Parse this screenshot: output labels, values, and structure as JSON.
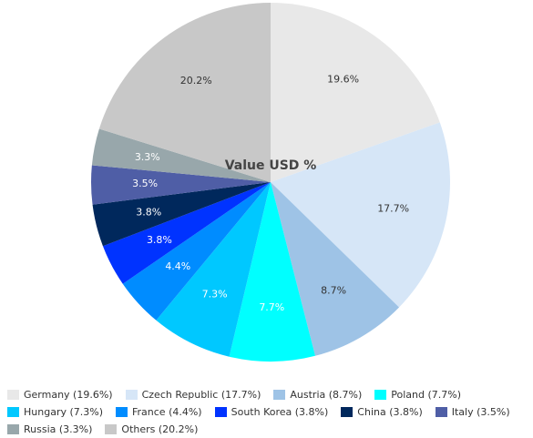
{
  "chart_data": {
    "type": "pie",
    "title": "Value USD %",
    "labels": [
      "Germany",
      "Czech Republic",
      "Austria",
      "Poland",
      "Hungary",
      "France",
      "South Korea",
      "China",
      "Italy",
      "Russia",
      "Others"
    ],
    "values": [
      19.6,
      17.7,
      8.7,
      7.7,
      7.3,
      4.4,
      3.8,
      3.8,
      3.5,
      3.3,
      20.2
    ],
    "slice_labels": [
      "19.6%",
      "17.7%",
      "8.7%",
      "7.7%",
      "7.3%",
      "4.4%",
      "3.8%",
      "3.8%",
      "3.5%",
      "3.3%",
      "20.2%"
    ],
    "legend_labels": [
      "Germany (19.6%)",
      "Czech Republic (17.7%)",
      "Austria (8.7%)",
      "Poland (7.7%)",
      "Hungary (7.3%)",
      "France (4.4%)",
      "South Korea (3.8%)",
      "China (3.8%)",
      "Italy (3.5%)",
      "Russia (3.3%)",
      "Others (20.2%)"
    ],
    "colors": [
      "#e8e8e8",
      "#d6e6f7",
      "#9ec3e6",
      "#00ffff",
      "#00c8ff",
      "#008cff",
      "#0033ff",
      "#00285c",
      "#4f5ea6",
      "#98a7ab",
      "#c8c8c8"
    ],
    "label_colors": [
      "#333333",
      "#333333",
      "#333333",
      "#ffffff",
      "#ffffff",
      "#ffffff",
      "#ffffff",
      "#ffffff",
      "#ffffff",
      "#ffffff",
      "#333333"
    ],
    "legend_placement": "bottom"
  }
}
